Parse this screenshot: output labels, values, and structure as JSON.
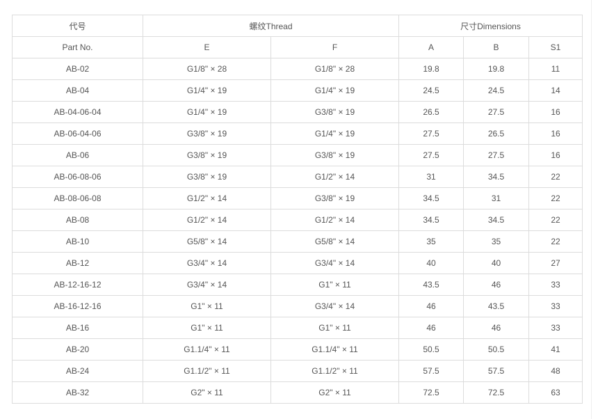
{
  "header": {
    "part_cn": "代号",
    "part_en": "Part No.",
    "thread": "螺纹Thread",
    "dimensions": "尺寸Dimensions",
    "cols": [
      "E",
      "F",
      "A",
      "B",
      "S1"
    ]
  },
  "rows": [
    [
      "AB-02",
      "G1/8\" × 28",
      "G1/8\" × 28",
      "19.8",
      "19.8",
      "11"
    ],
    [
      "AB-04",
      "G1/4\" × 19",
      "G1/4\" × 19",
      "24.5",
      "24.5",
      "14"
    ],
    [
      "AB-04-06-04",
      "G1/4\" × 19",
      "G3/8\" × 19",
      "26.5",
      "27.5",
      "16"
    ],
    [
      "AB-06-04-06",
      "G3/8\" × 19",
      "G1/4\" × 19",
      "27.5",
      "26.5",
      "16"
    ],
    [
      "AB-06",
      "G3/8\" × 19",
      "G3/8\" × 19",
      "27.5",
      "27.5",
      "16"
    ],
    [
      "AB-06-08-06",
      "G3/8\" × 19",
      "G1/2\" × 14",
      "31",
      "34.5",
      "22"
    ],
    [
      "AB-08-06-08",
      "G1/2\" × 14",
      "G3/8\" × 19",
      "34.5",
      "31",
      "22"
    ],
    [
      "AB-08",
      "G1/2\" × 14",
      "G1/2\" × 14",
      "34.5",
      "34.5",
      "22"
    ],
    [
      "AB-10",
      "G5/8\" × 14",
      "G5/8\" × 14",
      "35",
      "35",
      "22"
    ],
    [
      "AB-12",
      "G3/4\" × 14",
      "G3/4\" × 14",
      "40",
      "40",
      "27"
    ],
    [
      "AB-12-16-12",
      "G3/4\" × 14",
      "G1\" × 11",
      "43.5",
      "46",
      "33"
    ],
    [
      "AB-16-12-16",
      "G1\" × 11",
      "G3/4\" × 14",
      "46",
      "43.5",
      "33"
    ],
    [
      "AB-16",
      "G1\" × 11",
      "G1\" × 11",
      "46",
      "46",
      "33"
    ],
    [
      "AB-20",
      "G1.1/4\" × 11",
      "G1.1/4\" × 11",
      "50.5",
      "50.5",
      "41"
    ],
    [
      "AB-24",
      "G1.1/2\" × 11",
      "G1.1/2\" × 11",
      "57.5",
      "57.5",
      "48"
    ],
    [
      "AB-32",
      "G2\" × 11",
      "G2\" × 11",
      "72.5",
      "72.5",
      "63"
    ]
  ]
}
